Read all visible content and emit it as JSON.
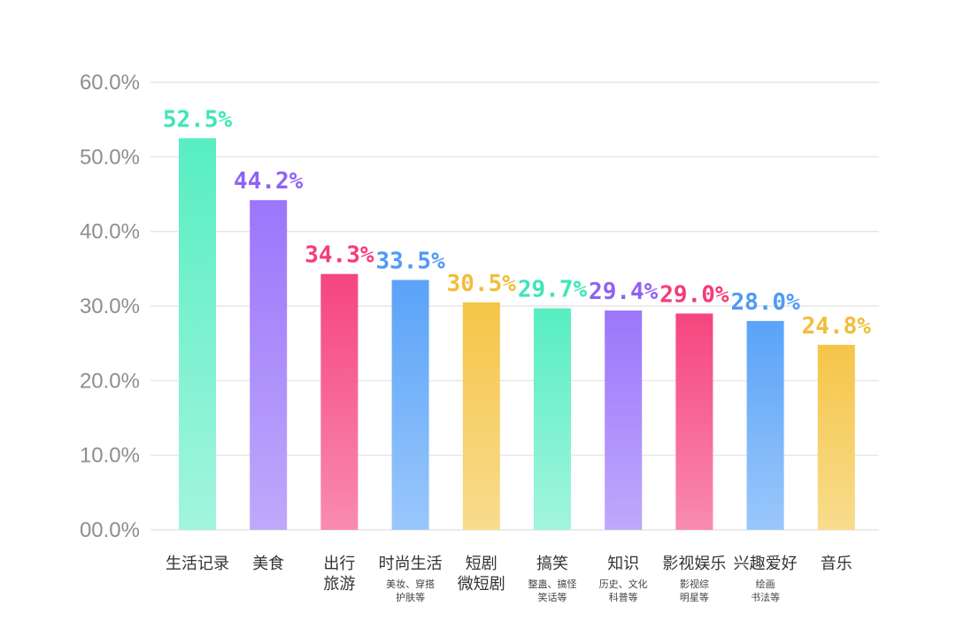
{
  "chart_data": {
    "type": "bar",
    "title": "",
    "xlabel": "",
    "ylabel": "",
    "ylim": [
      0,
      60
    ],
    "yticks": [
      {
        "value": 0,
        "label": "00.0%"
      },
      {
        "value": 10,
        "label": "10.0%"
      },
      {
        "value": 20,
        "label": "20.0%"
      },
      {
        "value": 30,
        "label": "30.0%"
      },
      {
        "value": 40,
        "label": "40.0%"
      },
      {
        "value": 50,
        "label": "50.0%"
      },
      {
        "value": 60,
        "label": "60.0%"
      }
    ],
    "grid": true,
    "categories": [
      {
        "label_lines": [
          "生活记录"
        ],
        "sub_lines": []
      },
      {
        "label_lines": [
          "美食"
        ],
        "sub_lines": []
      },
      {
        "label_lines": [
          "出行",
          "旅游"
        ],
        "sub_lines": []
      },
      {
        "label_lines": [
          "时尚生活"
        ],
        "sub_lines": [
          "美妆、穿搭",
          "护肤等"
        ]
      },
      {
        "label_lines": [
          "短剧",
          "微短剧"
        ],
        "sub_lines": []
      },
      {
        "label_lines": [
          "搞笑"
        ],
        "sub_lines": [
          "整蛊、搞怪",
          "笑话等"
        ]
      },
      {
        "label_lines": [
          "知识"
        ],
        "sub_lines": [
          "历史、文化",
          "科普等"
        ]
      },
      {
        "label_lines": [
          "影视娱乐"
        ],
        "sub_lines": [
          "影视综",
          "明星等"
        ]
      },
      {
        "label_lines": [
          "兴趣爱好"
        ],
        "sub_lines": [
          "绘画",
          "书法等"
        ]
      },
      {
        "label_lines": [
          "音乐"
        ],
        "sub_lines": []
      }
    ],
    "values": [
      52.5,
      44.2,
      34.3,
      33.5,
      30.5,
      29.7,
      29.4,
      29.0,
      28.0,
      24.8
    ],
    "value_labels": [
      "52.5%",
      "44.2%",
      "34.3%",
      "33.5%",
      "30.5%",
      "29.7%",
      "29.4%",
      "29.0%",
      "28.0%",
      "24.8%"
    ],
    "bar_colors": [
      {
        "top": "#57eec2",
        "bottom": "#a2f5dd",
        "label": "#3ee6b6"
      },
      {
        "top": "#9b76fb",
        "bottom": "#c0a8fb",
        "label": "#8f62f5"
      },
      {
        "top": "#f5457f",
        "bottom": "#f98bb0",
        "label": "#f53c78"
      },
      {
        "top": "#5aa3f8",
        "bottom": "#9ac7fb",
        "label": "#4f9af5"
      },
      {
        "top": "#f5c548",
        "bottom": "#f8dc8d",
        "label": "#f2bd3b"
      },
      {
        "top": "#57eec2",
        "bottom": "#a2f5dd",
        "label": "#3ee6b6"
      },
      {
        "top": "#9b76fb",
        "bottom": "#c0a8fb",
        "label": "#8f62f5"
      },
      {
        "top": "#f5457f",
        "bottom": "#f98bb0",
        "label": "#f53c78"
      },
      {
        "top": "#5aa3f8",
        "bottom": "#9ac7fb",
        "label": "#4f9af5"
      },
      {
        "top": "#f5c548",
        "bottom": "#f8dc8d",
        "label": "#f2bd3b"
      }
    ],
    "colors": {
      "grid": "#e6e6e6",
      "tick_text": "#8e8e8e",
      "category_text": "#333333",
      "sub_text": "#444444"
    }
  }
}
